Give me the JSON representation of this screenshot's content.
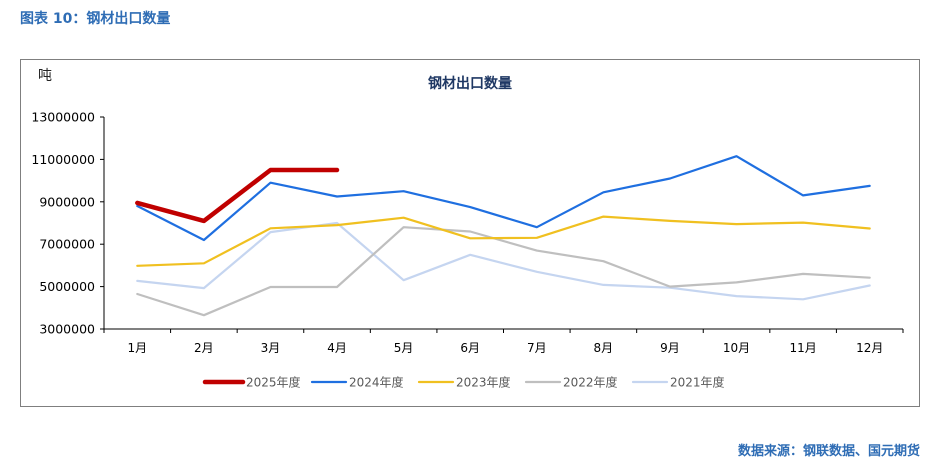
{
  "figure_caption": "图表 10：钢材出口数量",
  "source_note": "数据来源：钢联数据、国元期货",
  "chart_data": {
    "type": "line",
    "title": "钢材出口数量",
    "ylabel": "吨",
    "xlabel": "",
    "categories": [
      "1月",
      "2月",
      "3月",
      "4月",
      "5月",
      "6月",
      "7月",
      "8月",
      "9月",
      "10月",
      "11月",
      "12月"
    ],
    "ylim": [
      3000000,
      13000000
    ],
    "yticks": [
      3000000,
      5000000,
      7000000,
      9000000,
      11000000,
      13000000
    ],
    "ytick_labels": [
      "3000000",
      "5000000",
      "7000000",
      "9000000",
      "11000000",
      "13000000"
    ],
    "legend_position": "bottom",
    "grid": false,
    "series": [
      {
        "name": "2025年度",
        "color": "#c00000",
        "bold": true,
        "values": [
          8950000,
          8100000,
          10500000,
          10500000,
          null,
          null,
          null,
          null,
          null,
          null,
          null,
          null
        ]
      },
      {
        "name": "2024年度",
        "color": "#1f6fe0",
        "values": [
          8800000,
          7200000,
          9900000,
          9250000,
          9500000,
          8750000,
          7800000,
          9450000,
          10100000,
          11150000,
          9300000,
          9750000
        ]
      },
      {
        "name": "2023年度",
        "color": "#f0c020",
        "values": [
          5980000,
          6100000,
          7750000,
          7900000,
          8250000,
          7280000,
          7300000,
          8300000,
          8100000,
          7950000,
          8020000,
          7740000
        ]
      },
      {
        "name": "2022年度",
        "color": "#bfbfbf",
        "values": [
          4650000,
          3650000,
          4980000,
          4980000,
          7800000,
          7600000,
          6700000,
          6200000,
          5000000,
          5200000,
          5600000,
          5420000
        ]
      },
      {
        "name": "2021年度",
        "color": "#c5d5f0",
        "values": [
          5270000,
          4930000,
          7570000,
          8000000,
          5300000,
          6500000,
          5700000,
          5080000,
          4950000,
          4550000,
          4400000,
          5050000
        ]
      }
    ]
  }
}
